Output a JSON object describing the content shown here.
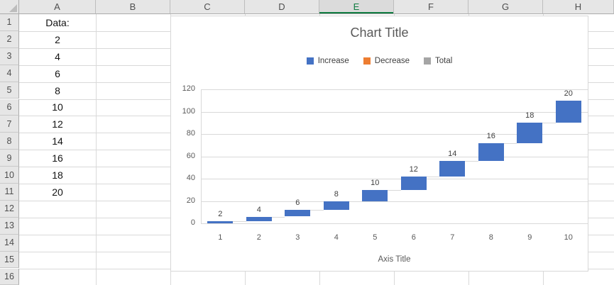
{
  "spreadsheet": {
    "column_headers": [
      "A",
      "B",
      "C",
      "D",
      "E",
      "F",
      "G",
      "H"
    ],
    "selected_column": "E",
    "row_headers": [
      "1",
      "2",
      "3",
      "4",
      "5",
      "6",
      "7",
      "8",
      "9",
      "10",
      "11",
      "12",
      "13",
      "14",
      "15",
      "16"
    ],
    "column_a_cells": [
      {
        "ref": "A1",
        "text": "Data:"
      },
      {
        "ref": "A2",
        "text": "2"
      },
      {
        "ref": "A3",
        "text": "4"
      },
      {
        "ref": "A4",
        "text": "6"
      },
      {
        "ref": "A5",
        "text": "8"
      },
      {
        "ref": "A6",
        "text": "10"
      },
      {
        "ref": "A7",
        "text": "12"
      },
      {
        "ref": "A8",
        "text": "14"
      },
      {
        "ref": "A9",
        "text": "16"
      },
      {
        "ref": "A10",
        "text": "18"
      },
      {
        "ref": "A11",
        "text": "20"
      }
    ]
  },
  "chart": {
    "title": "Chart Title",
    "axis_title": "Axis Title",
    "legend": [
      {
        "label": "Increase",
        "color": "#4472C4"
      },
      {
        "label": "Decrease",
        "color": "#ED7D31"
      },
      {
        "label": "Total",
        "color": "#A5A5A5"
      }
    ]
  },
  "chart_data": {
    "type": "bar",
    "subtype": "waterfall",
    "title": "Chart Title",
    "xlabel": "Axis Title",
    "ylabel": "",
    "categories": [
      "1",
      "2",
      "3",
      "4",
      "5",
      "6",
      "7",
      "8",
      "9",
      "10"
    ],
    "series": [
      {
        "name": "Increase",
        "values": [
          2,
          4,
          6,
          8,
          10,
          12,
          14,
          16,
          18,
          20
        ]
      }
    ],
    "cumulative_start": [
      0,
      2,
      6,
      12,
      20,
      30,
      42,
      56,
      72,
      90
    ],
    "cumulative_end": [
      2,
      6,
      12,
      20,
      30,
      42,
      56,
      72,
      90,
      110
    ],
    "data_labels": [
      "2",
      "4",
      "6",
      "8",
      "10",
      "12",
      "14",
      "16",
      "18",
      "20"
    ],
    "ylim": [
      0,
      120
    ],
    "yticks": [
      0,
      20,
      40,
      60,
      80,
      100,
      120
    ],
    "legend": [
      "Increase",
      "Decrease",
      "Total"
    ],
    "legend_position": "top",
    "grid": true
  },
  "colors": {
    "bar_fill": "#4472C4",
    "decrease": "#ED7D31",
    "total": "#A5A5A5",
    "selected_header_green": "#107C41",
    "gridline": "#D9D9D9"
  }
}
